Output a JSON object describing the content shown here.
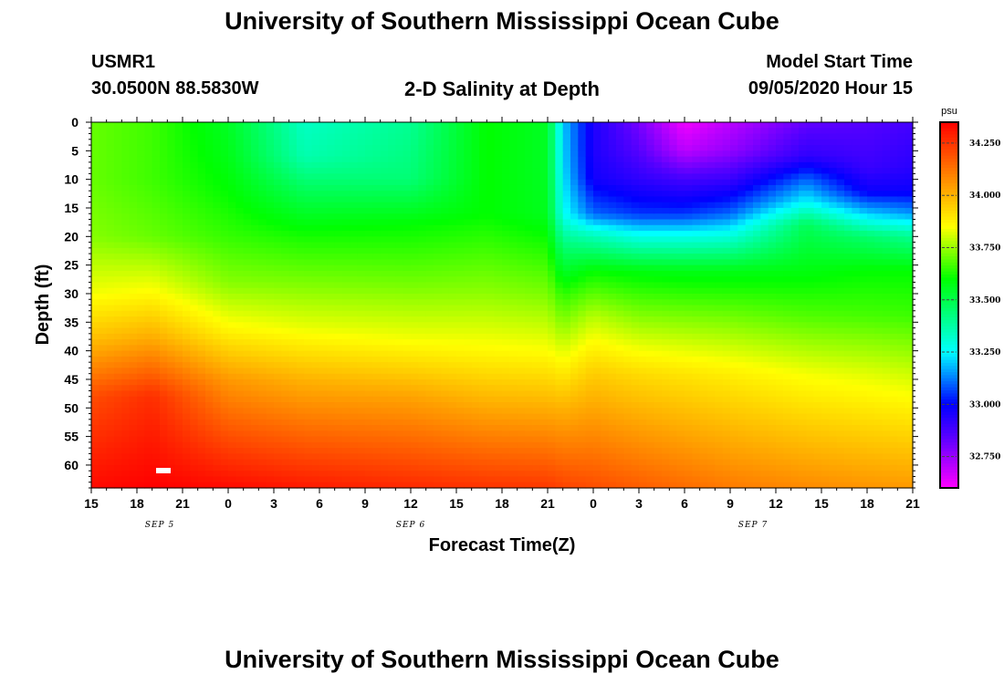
{
  "header": {
    "title": "University of Southern Mississippi Ocean Cube",
    "station": "USMR1",
    "coords": "30.0500N 88.5830W",
    "plot_title": "2-D Salinity at Depth",
    "model_start_label": "Model Start Time",
    "model_start_value": "09/05/2020 Hour 15"
  },
  "footer": {
    "title": "University of Southern Mississippi Ocean Cube"
  },
  "chart_data": {
    "type": "heatmap",
    "title": "2-D Salinity at Depth",
    "xlabel": "Forecast Time(Z)",
    "ylabel": "Depth (ft)",
    "x_tick_labels": [
      "15",
      "18",
      "21",
      "0",
      "3",
      "6",
      "9",
      "12",
      "15",
      "18",
      "21",
      "0",
      "3",
      "6",
      "9",
      "12",
      "15",
      "18",
      "21"
    ],
    "x_range_hours": [
      0,
      54
    ],
    "date_labels": [
      {
        "text": "SEP 5",
        "hour": 4.5
      },
      {
        "text": "SEP 6",
        "hour": 21
      },
      {
        "text": "SEP 7",
        "hour": 43.5
      }
    ],
    "y_tick_labels": [
      "0",
      "5",
      "10",
      "15",
      "20",
      "25",
      "30",
      "35",
      "40",
      "45",
      "50",
      "55",
      "60"
    ],
    "y_range_ft": [
      0,
      64
    ],
    "colorbar": {
      "unit": "psu",
      "min": 32.6,
      "max": 34.35,
      "tick_labels": [
        "34.250",
        "34.000",
        "33.750",
        "33.500",
        "33.250",
        "33.000",
        "32.750"
      ],
      "tick_values": [
        34.25,
        34.0,
        33.75,
        33.5,
        33.25,
        33.0,
        32.75
      ],
      "colors": [
        "#ff00ff",
        "#5500ff",
        "#0000ff",
        "#00ffff",
        "#00ff00",
        "#ffff00",
        "#ff8000",
        "#ff0000"
      ],
      "color_stops": [
        32.6,
        32.85,
        33.0,
        33.25,
        33.6,
        33.85,
        34.1,
        34.35
      ]
    },
    "profiles": [
      {
        "hour": 0,
        "depth": [
          0,
          10,
          20,
          30,
          38,
          48,
          64
        ],
        "salinity": [
          33.7,
          33.7,
          33.73,
          33.84,
          33.98,
          34.2,
          34.33
        ]
      },
      {
        "hour": 4,
        "depth": [
          0,
          10,
          20,
          30,
          38,
          48,
          64
        ],
        "salinity": [
          33.66,
          33.66,
          33.7,
          33.86,
          34.02,
          34.26,
          34.35
        ]
      },
      {
        "hour": 9,
        "depth": [
          0,
          6,
          12,
          20,
          28,
          36,
          45,
          64
        ],
        "salinity": [
          33.55,
          33.57,
          33.6,
          33.65,
          33.73,
          33.86,
          34.05,
          34.33
        ]
      },
      {
        "hour": 14,
        "depth": [
          0,
          6,
          12,
          20,
          28,
          36,
          45,
          64
        ],
        "salinity": [
          33.33,
          33.36,
          33.48,
          33.62,
          33.72,
          33.83,
          34.0,
          34.3
        ]
      },
      {
        "hour": 21,
        "depth": [
          0,
          10,
          18,
          28,
          38,
          48,
          64
        ],
        "salinity": [
          33.4,
          33.44,
          33.6,
          33.71,
          33.84,
          34.03,
          34.27
        ]
      },
      {
        "hour": 26,
        "depth": [
          0,
          8,
          16,
          22,
          30,
          40,
          50,
          64
        ],
        "salinity": [
          33.6,
          33.6,
          33.6,
          33.66,
          33.74,
          33.86,
          34.02,
          34.25
        ]
      },
      {
        "hour": 30,
        "depth": [
          0,
          8,
          16,
          22,
          30,
          40,
          50,
          64
        ],
        "salinity": [
          33.55,
          33.55,
          33.56,
          33.63,
          33.72,
          33.85,
          34.01,
          34.24
        ]
      },
      {
        "hour": 31,
        "depth": [
          0,
          8,
          16,
          22,
          30,
          40,
          50,
          64
        ],
        "salinity": [
          33.2,
          33.22,
          33.27,
          33.45,
          33.64,
          33.82,
          34.0,
          34.22
        ]
      },
      {
        "hour": 33,
        "depth": [
          0,
          5,
          10,
          16,
          20,
          26,
          34,
          44,
          64
        ],
        "salinity": [
          32.95,
          32.95,
          32.97,
          33.1,
          33.35,
          33.6,
          33.78,
          33.95,
          34.2
        ]
      },
      {
        "hour": 36,
        "depth": [
          0,
          5,
          10,
          16,
          20,
          26,
          34,
          44,
          64
        ],
        "salinity": [
          32.8,
          32.85,
          32.92,
          33.05,
          33.28,
          33.58,
          33.73,
          33.92,
          34.17
        ]
      },
      {
        "hour": 39,
        "depth": [
          0,
          5,
          10,
          16,
          20,
          26,
          34,
          44,
          64
        ],
        "salinity": [
          32.62,
          32.7,
          32.88,
          33.05,
          33.28,
          33.57,
          33.72,
          33.9,
          34.14
        ]
      },
      {
        "hour": 42,
        "depth": [
          0,
          5,
          10,
          16,
          20,
          26,
          34,
          44,
          64
        ],
        "salinity": [
          32.7,
          32.76,
          32.9,
          33.1,
          33.3,
          33.57,
          33.71,
          33.88,
          34.11
        ]
      },
      {
        "hour": 47,
        "depth": [
          0,
          6,
          10,
          14,
          18,
          26,
          34,
          44,
          64
        ],
        "salinity": [
          32.83,
          32.92,
          33.1,
          33.25,
          33.48,
          33.58,
          33.68,
          33.84,
          34.08
        ]
      },
      {
        "hour": 51,
        "depth": [
          0,
          8,
          12,
          16,
          20,
          26,
          34,
          44,
          64
        ],
        "salinity": [
          32.85,
          32.9,
          32.98,
          33.2,
          33.45,
          33.6,
          33.67,
          33.82,
          34.06
        ]
      },
      {
        "hour": 54,
        "depth": [
          0,
          8,
          12,
          16,
          20,
          26,
          34,
          44,
          64
        ],
        "salinity": [
          32.88,
          32.93,
          32.98,
          33.15,
          33.4,
          33.6,
          33.66,
          33.8,
          34.05
        ]
      }
    ]
  }
}
